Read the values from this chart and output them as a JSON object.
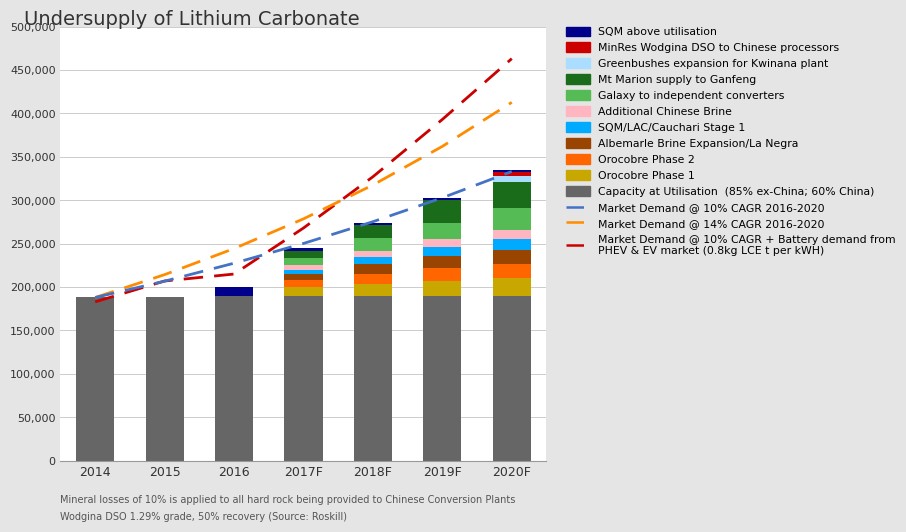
{
  "title": "Undersupply of Lithium Carbonate",
  "categories": [
    "2014",
    "2015",
    "2016",
    "2017F",
    "2018F",
    "2019F",
    "2020F"
  ],
  "x_positions": [
    0,
    1,
    2,
    3,
    4,
    5,
    6
  ],
  "background_color": "#e5e5e5",
  "plot_bg_color": "#ffffff",
  "ylim": [
    0,
    500000
  ],
  "yticks": [
    0,
    50000,
    100000,
    150000,
    200000,
    250000,
    300000,
    350000,
    400000,
    450000,
    500000
  ],
  "ytick_labels": [
    "0",
    "50,000",
    "100,000",
    "150,000",
    "200,000",
    "250,000",
    "300,000",
    "350,000",
    "400,000",
    "450,000",
    "500,000"
  ],
  "bar_data": {
    "capacity": [
      188000,
      188000,
      190000,
      190000,
      190000,
      190000,
      190000
    ],
    "orocobre_p1": [
      0,
      0,
      0,
      10000,
      13000,
      17000,
      20000
    ],
    "orocobre_p2": [
      0,
      0,
      0,
      8000,
      12000,
      15000,
      17000
    ],
    "albemarle": [
      0,
      0,
      0,
      7000,
      12000,
      14000,
      16000
    ],
    "sqm_lac": [
      0,
      0,
      0,
      5000,
      8000,
      10000,
      12000
    ],
    "add_chinese": [
      0,
      0,
      0,
      5000,
      7000,
      9000,
      11000
    ],
    "galaxy": [
      0,
      0,
      0,
      8000,
      14000,
      19000,
      25000
    ],
    "mt_marion": [
      0,
      0,
      0,
      8000,
      15000,
      26000,
      30000
    ],
    "greenbushes": [
      0,
      0,
      0,
      0,
      0,
      0,
      7000
    ],
    "minres": [
      0,
      0,
      0,
      0,
      0,
      0,
      5000
    ],
    "sqm_above": [
      0,
      0,
      10000,
      4000,
      3000,
      2000,
      2000
    ]
  },
  "colors": {
    "capacity": "#666666",
    "orocobre_p1": "#c8a800",
    "orocobre_p2": "#ff6600",
    "albemarle": "#994400",
    "sqm_lac": "#00aaff",
    "add_chinese": "#ffb6c1",
    "galaxy": "#55bb55",
    "mt_marion": "#1a6b1a",
    "greenbushes": "#aaddff",
    "minres": "#cc0000",
    "sqm_above": "#00008b"
  },
  "line_data": {
    "demand_10pct": {
      "x": [
        0,
        1,
        2,
        3,
        4,
        5,
        6
      ],
      "y": [
        188000,
        206800,
        227480,
        250228,
        275251,
        302776,
        333054
      ],
      "color": "#4472c4",
      "label": "Market Demand @ 10% CAGR 2016-2020"
    },
    "demand_14pct": {
      "x": [
        0,
        1,
        2,
        3,
        4,
        5,
        6
      ],
      "y": [
        188000,
        214320,
        244325,
        278530,
        317524,
        361978,
        412655
      ],
      "color": "#ff8c00",
      "label": "Market Demand @ 14% CAGR 2016-2020"
    },
    "demand_ev": {
      "x": [
        0,
        1,
        2,
        3,
        4,
        5,
        6
      ],
      "y": [
        183000,
        207000,
        215000,
        268000,
        327000,
        393000,
        463000
      ],
      "color": "#cc0000",
      "label": "Market Demand @ 10% CAGR + Battery demand from\nPHEV & EV market (0.8kg LCE t per kWH)"
    }
  },
  "footnote1": "Mineral losses of 10% is applied to all hard rock being provided to Chinese Conversion Plants",
  "footnote2": "Wodgina DSO 1.29% grade, 50% recovery (Source: Roskill)",
  "legend_labels": {
    "sqm_above": "SQM above utilisation",
    "minres": "MinRes Wodgina DSO to Chinese processors",
    "greenbushes": "Greenbushes expansion for Kwinana plant",
    "mt_marion": "Mt Marion supply to Ganfeng",
    "galaxy": "Galaxy to independent converters",
    "add_chinese": "Additional Chinese Brine",
    "sqm_lac": "SQM/LAC/Cauchari Stage 1",
    "albemarle": "Albemarle Brine Expansion/La Negra",
    "orocobre_p2": "Orocobre Phase 2",
    "orocobre_p1": "Orocobre Phase 1",
    "capacity": "Capacity at Utilisation  (85% ex-China; 60% China)"
  }
}
